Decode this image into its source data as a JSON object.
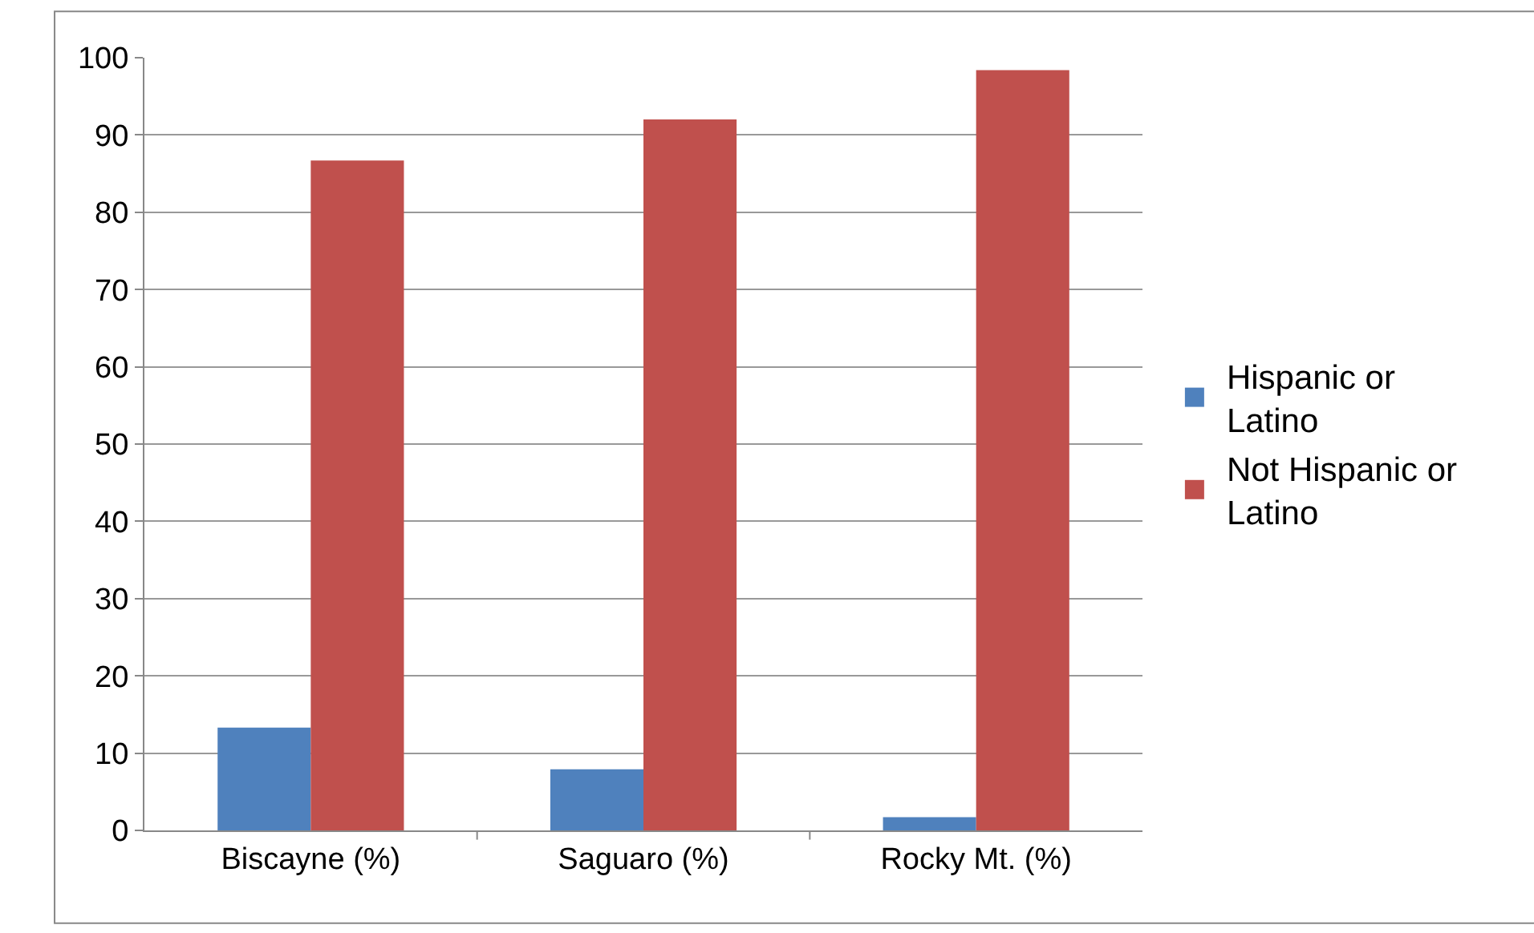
{
  "chart_data": {
    "type": "bar",
    "categories": [
      "Biscayne (%)",
      "Saguaro (%)",
      "Rocky Mt. (%)"
    ],
    "series": [
      {
        "name": "Hispanic or\nLatino",
        "color": "#4f81bd",
        "values": [
          13.3,
          7.9,
          1.7
        ]
      },
      {
        "name": "Not Hispanic or\nLatino",
        "color": "#c0504d",
        "values": [
          86.7,
          92.0,
          98.4
        ]
      }
    ],
    "ylim": [
      0,
      100
    ],
    "yticks": [
      0,
      10,
      20,
      30,
      40,
      50,
      60,
      70,
      80,
      90,
      100
    ],
    "grid": "y",
    "legend": "right"
  }
}
